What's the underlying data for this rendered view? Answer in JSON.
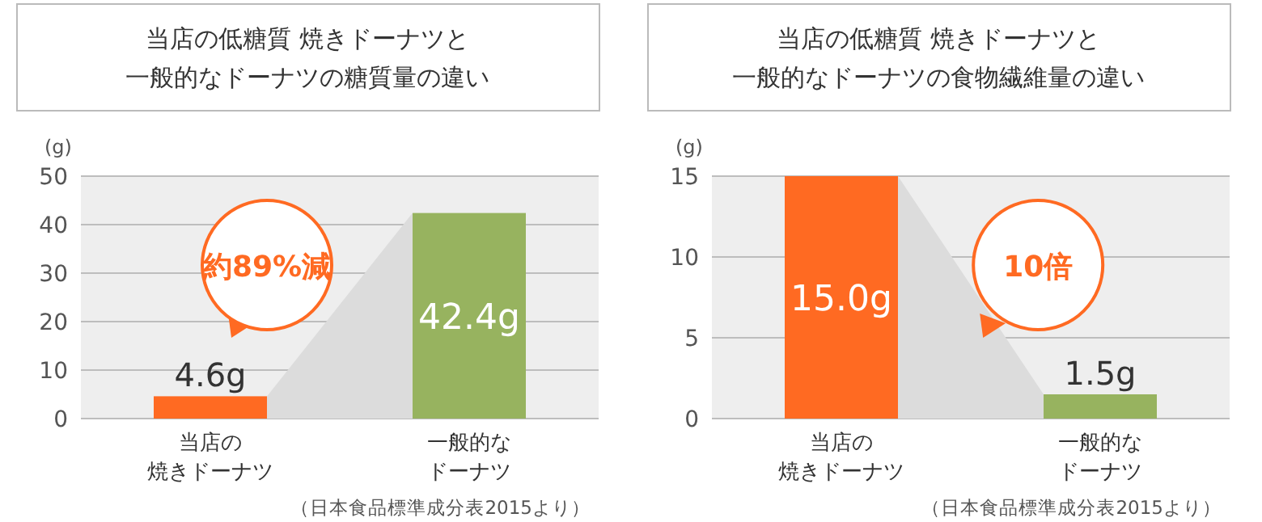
{
  "chart_data": [
    {
      "type": "bar",
      "title": "当店の低糖質 焼きドーナツと一般的なドーナツの糖質量の違い",
      "ylabel": "(g)",
      "categories": [
        "当店の焼きドーナツ",
        "一般的なドーナツ"
      ],
      "values": [
        4.6,
        42.4
      ],
      "colors": [
        "#ff6a22",
        "#97b35f"
      ],
      "value_labels": [
        "4.6g",
        "42.4g"
      ],
      "ylim": [
        0,
        50
      ],
      "yticks": [
        0,
        10,
        20,
        30,
        40,
        50
      ],
      "grid": "y",
      "annotations": [
        "約89%減",
        "（日本食品標準成分表2015より）"
      ]
    },
    {
      "type": "bar",
      "title": "当店の低糖質 焼きドーナツと一般的なドーナツの食物繊維量の違い",
      "ylabel": "(g)",
      "categories": [
        "当店の焼きドーナツ",
        "一般的なドーナツ"
      ],
      "values": [
        15.0,
        1.5
      ],
      "colors": [
        "#ff6a22",
        "#97b35f"
      ],
      "value_labels": [
        "15.0g",
        "1.5g"
      ],
      "ylim": [
        0,
        15
      ],
      "yticks": [
        0,
        5,
        10,
        15
      ],
      "grid": "y",
      "annotations": [
        "10倍",
        "（日本食品標準成分表2015より）"
      ]
    }
  ]
}
